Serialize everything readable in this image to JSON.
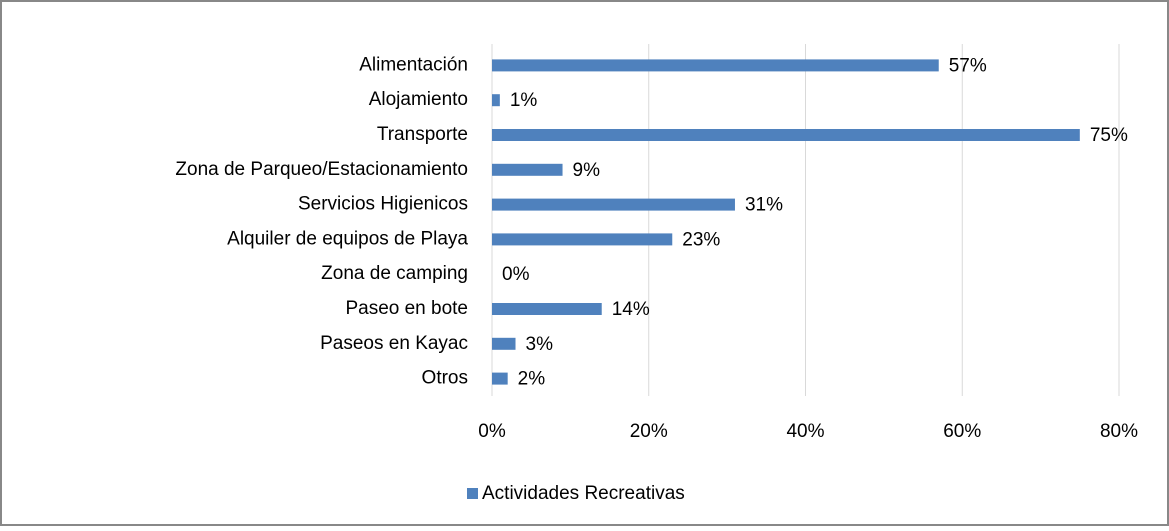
{
  "chart_data": {
    "type": "bar",
    "orientation": "horizontal",
    "categories": [
      "Alimentación",
      "Alojamiento",
      "Transporte",
      "Zona de Parqueo/Estacionamiento",
      "Servicios Higienicos",
      "Alquiler de equipos de Playa",
      "Zona de camping",
      "Paseo en bote",
      "Paseos en Kayac",
      "Otros"
    ],
    "series": [
      {
        "name": "Actividades Recreativas",
        "color": "#4f81bd",
        "values": [
          57,
          1,
          75,
          9,
          31,
          23,
          0,
          14,
          3,
          2
        ],
        "value_labels": [
          "57%",
          "1%",
          "75%",
          "9%",
          "31%",
          "23%",
          "0%",
          "14%",
          "3%",
          "2%"
        ]
      }
    ],
    "xlim": [
      0,
      80
    ],
    "xticks": [
      {
        "value": 0,
        "label": "0%"
      },
      {
        "value": 20,
        "label": "20%"
      },
      {
        "value": 40,
        "label": "40%"
      },
      {
        "value": 60,
        "label": "60%"
      },
      {
        "value": 80,
        "label": "80%"
      }
    ],
    "grid": true,
    "legend": "bottom"
  }
}
